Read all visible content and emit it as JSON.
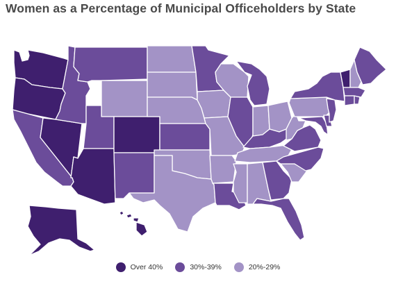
{
  "title": "Women as a Percentage of Municipal Officeholders by State",
  "legend": [
    {
      "key": "over40",
      "label": "Over 40%",
      "color": "#3f1f6e"
    },
    {
      "key": "r30_39",
      "label": "30%-39%",
      "color": "#6b4c9a"
    },
    {
      "key": "r20_29",
      "label": "20%-29%",
      "color": "#a393c6"
    }
  ],
  "border_color": "#ffffff",
  "states": [
    {
      "code": "WA",
      "name": "Washington",
      "category": "over40"
    },
    {
      "code": "OR",
      "name": "Oregon",
      "category": "over40"
    },
    {
      "code": "CA",
      "name": "California",
      "category": "r30_39"
    },
    {
      "code": "NV",
      "name": "Nevada",
      "category": "over40"
    },
    {
      "code": "ID",
      "name": "Idaho",
      "category": "r30_39"
    },
    {
      "code": "MT",
      "name": "Montana",
      "category": "r30_39"
    },
    {
      "code": "WY",
      "name": "Wyoming",
      "category": "r20_29"
    },
    {
      "code": "UT",
      "name": "Utah",
      "category": "r30_39"
    },
    {
      "code": "AZ",
      "name": "Arizona",
      "category": "over40"
    },
    {
      "code": "CO",
      "name": "Colorado",
      "category": "over40"
    },
    {
      "code": "NM",
      "name": "New Mexico",
      "category": "r30_39"
    },
    {
      "code": "ND",
      "name": "North Dakota",
      "category": "r20_29"
    },
    {
      "code": "SD",
      "name": "South Dakota",
      "category": "r20_29"
    },
    {
      "code": "NE",
      "name": "Nebraska",
      "category": "r20_29"
    },
    {
      "code": "KS",
      "name": "Kansas",
      "category": "r30_39"
    },
    {
      "code": "OK",
      "name": "Oklahoma",
      "category": "r20_29"
    },
    {
      "code": "TX",
      "name": "Texas",
      "category": "r20_29"
    },
    {
      "code": "MN",
      "name": "Minnesota",
      "category": "r30_39"
    },
    {
      "code": "IA",
      "name": "Iowa",
      "category": "r20_29"
    },
    {
      "code": "MO",
      "name": "Missouri",
      "category": "r20_29"
    },
    {
      "code": "AR",
      "name": "Arkansas",
      "category": "r20_29"
    },
    {
      "code": "LA",
      "name": "Louisiana",
      "category": "r30_39"
    },
    {
      "code": "WI",
      "name": "Wisconsin",
      "category": "r20_29"
    },
    {
      "code": "IL",
      "name": "Illinois",
      "category": "r30_39"
    },
    {
      "code": "MI",
      "name": "Michigan",
      "category": "r30_39"
    },
    {
      "code": "IN",
      "name": "Indiana",
      "category": "r20_29"
    },
    {
      "code": "OH",
      "name": "Ohio",
      "category": "r20_29"
    },
    {
      "code": "KY",
      "name": "Kentucky",
      "category": "r30_39"
    },
    {
      "code": "TN",
      "name": "Tennessee",
      "category": "r20_29"
    },
    {
      "code": "MS",
      "name": "Mississippi",
      "category": "r20_29"
    },
    {
      "code": "AL",
      "name": "Alabama",
      "category": "r20_29"
    },
    {
      "code": "GA",
      "name": "Georgia",
      "category": "r30_39"
    },
    {
      "code": "FL",
      "name": "Florida",
      "category": "r30_39"
    },
    {
      "code": "SC",
      "name": "South Carolina",
      "category": "r20_29"
    },
    {
      "code": "NC",
      "name": "North Carolina",
      "category": "r30_39"
    },
    {
      "code": "VA",
      "name": "Virginia",
      "category": "r30_39"
    },
    {
      "code": "WV",
      "name": "West Virginia",
      "category": "r20_29"
    },
    {
      "code": "PA",
      "name": "Pennsylvania",
      "category": "r20_29"
    },
    {
      "code": "NY",
      "name": "New York",
      "category": "r30_39"
    },
    {
      "code": "VT",
      "name": "Vermont",
      "category": "over40"
    },
    {
      "code": "NH",
      "name": "New Hampshire",
      "category": "r20_29"
    },
    {
      "code": "ME",
      "name": "Maine",
      "category": "r30_39"
    },
    {
      "code": "MA",
      "name": "Massachusetts",
      "category": "r30_39"
    },
    {
      "code": "RI",
      "name": "Rhode Island",
      "category": "r30_39"
    },
    {
      "code": "CT",
      "name": "Connecticut",
      "category": "r30_39"
    },
    {
      "code": "NJ",
      "name": "New Jersey",
      "category": "r30_39"
    },
    {
      "code": "DE",
      "name": "Delaware",
      "category": "r30_39"
    },
    {
      "code": "MD",
      "name": "Maryland",
      "category": "r30_39"
    },
    {
      "code": "AK",
      "name": "Alaska",
      "category": "over40"
    },
    {
      "code": "HI",
      "name": "Hawaii",
      "category": "over40"
    }
  ]
}
